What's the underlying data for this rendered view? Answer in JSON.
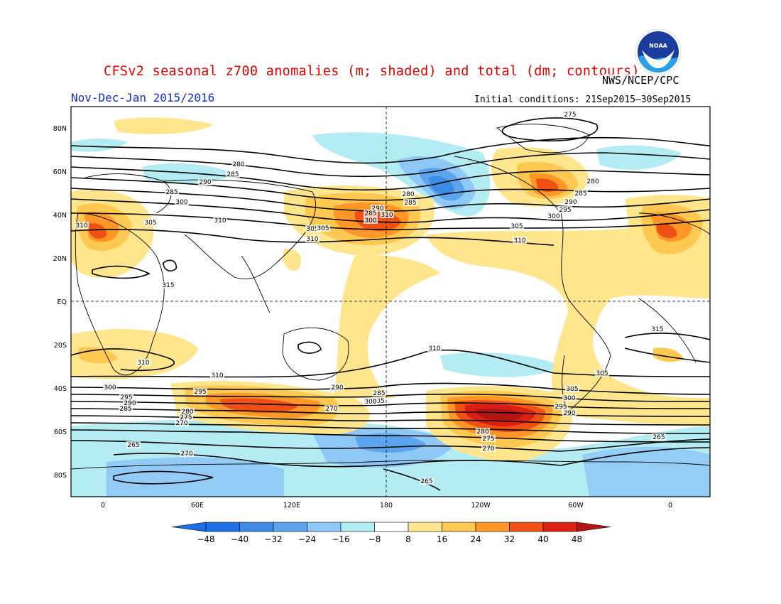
{
  "title": "CFSv2 seasonal z700 anomalies (m; shaded) and total (dm; contours)",
  "org": "NWS/NCEP/CPC",
  "period": "Nov-Dec-Jan 2015/2016",
  "initial_conditions": "Initial conditions: 21Sep2015–30Sep2015",
  "logo_text": "NOAA",
  "lat_labels": [
    "80N",
    "60N",
    "40N",
    "20N",
    "EQ",
    "20S",
    "40S",
    "60S",
    "80S"
  ],
  "lon_labels": [
    "0",
    "60E",
    "120E",
    "180",
    "120W",
    "60W",
    "0"
  ],
  "colorbar": {
    "levels": [
      "-48",
      "-40",
      "-32",
      "-24",
      "-16",
      "-8",
      "8",
      "16",
      "24",
      "32",
      "40",
      "48"
    ],
    "colors": [
      "#1e6ee6",
      "#3c8ce6",
      "#5ca4ee",
      "#8ec8f6",
      "#b4ecf4",
      "#ffffff",
      "#ffe68c",
      "#ffc850",
      "#ff9628",
      "#f05014",
      "#dc1e14",
      "#b41414"
    ]
  },
  "contour_labels": [
    {
      "v": "275"
    },
    {
      "v": "280"
    },
    {
      "v": "285"
    },
    {
      "v": "290"
    },
    {
      "v": "285"
    },
    {
      "v": "300"
    },
    {
      "v": "310"
    },
    {
      "v": "305"
    },
    {
      "v": "310"
    },
    {
      "v": "305"
    },
    {
      "v": "310"
    },
    {
      "v": "315"
    },
    {
      "v": "290"
    },
    {
      "v": "285"
    },
    {
      "v": "300"
    },
    {
      "v": "305"
    },
    {
      "v": "310"
    },
    {
      "v": "280"
    },
    {
      "v": "285"
    },
    {
      "v": "305"
    },
    {
      "v": "310"
    },
    {
      "v": "280"
    },
    {
      "v": "285"
    },
    {
      "v": "290"
    },
    {
      "v": "295"
    },
    {
      "v": "300"
    },
    {
      "v": "310"
    },
    {
      "v": "315"
    },
    {
      "v": "310"
    },
    {
      "v": "310"
    },
    {
      "v": "305"
    },
    {
      "v": "300"
    },
    {
      "v": "295"
    },
    {
      "v": "290"
    },
    {
      "v": "285"
    },
    {
      "v": "305"
    },
    {
      "v": "300"
    },
    {
      "v": "295"
    },
    {
      "v": "290"
    },
    {
      "v": "280"
    },
    {
      "v": "275"
    },
    {
      "v": "270"
    },
    {
      "v": "305"
    },
    {
      "v": "300"
    },
    {
      "v": "295"
    },
    {
      "v": "290"
    },
    {
      "v": "285"
    },
    {
      "v": "280"
    },
    {
      "v": "275"
    },
    {
      "v": "270"
    },
    {
      "v": "265"
    },
    {
      "v": "270"
    },
    {
      "v": "265"
    },
    {
      "v": "265"
    },
    {
      "v": "270"
    }
  ]
}
